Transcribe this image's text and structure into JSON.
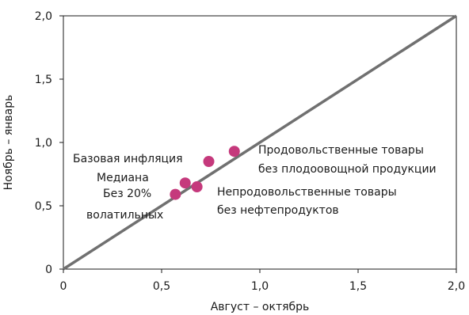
{
  "chart_data": {
    "type": "scatter",
    "xlabel": "Август – октябрь",
    "ylabel": "Ноябрь – январь",
    "xlim": [
      0,
      2.0
    ],
    "ylim": [
      0,
      2.0
    ],
    "x_ticks": [
      "0",
      "0,5",
      "1,0",
      "1,5",
      "2,0"
    ],
    "y_ticks": [
      "0",
      "0,5",
      "1,0",
      "1,5",
      "2,0"
    ],
    "grid": false,
    "reference_line": {
      "from": [
        0,
        0
      ],
      "to": [
        2.0,
        2.0
      ],
      "color": "#707070"
    },
    "marker_color": "#C5397C",
    "points": [
      {
        "label": "Базовая инфляция",
        "x": 0.74,
        "y": 0.85
      },
      {
        "label": "Медиана",
        "x": 0.62,
        "y": 0.68
      },
      {
        "label": "Без 20% волатильных",
        "x": 0.57,
        "y": 0.59
      },
      {
        "label": "Непродовольственные товары без нефтепродуктов",
        "x": 0.68,
        "y": 0.65
      },
      {
        "label": "Продовольственные товары без плодоовощной продукции",
        "x": 0.87,
        "y": 0.93
      }
    ],
    "annotations": [
      {
        "lines": [
          "Продовольственные товары",
          "без плодоовощной продукции"
        ]
      },
      {
        "lines": [
          "Базовая инфляция"
        ]
      },
      {
        "lines": [
          "Медиана"
        ]
      },
      {
        "lines": [
          "Без 20%",
          "волатильных"
        ]
      },
      {
        "lines": [
          "Непродовольственные товары",
          "без нефтепродуктов"
        ]
      }
    ]
  }
}
